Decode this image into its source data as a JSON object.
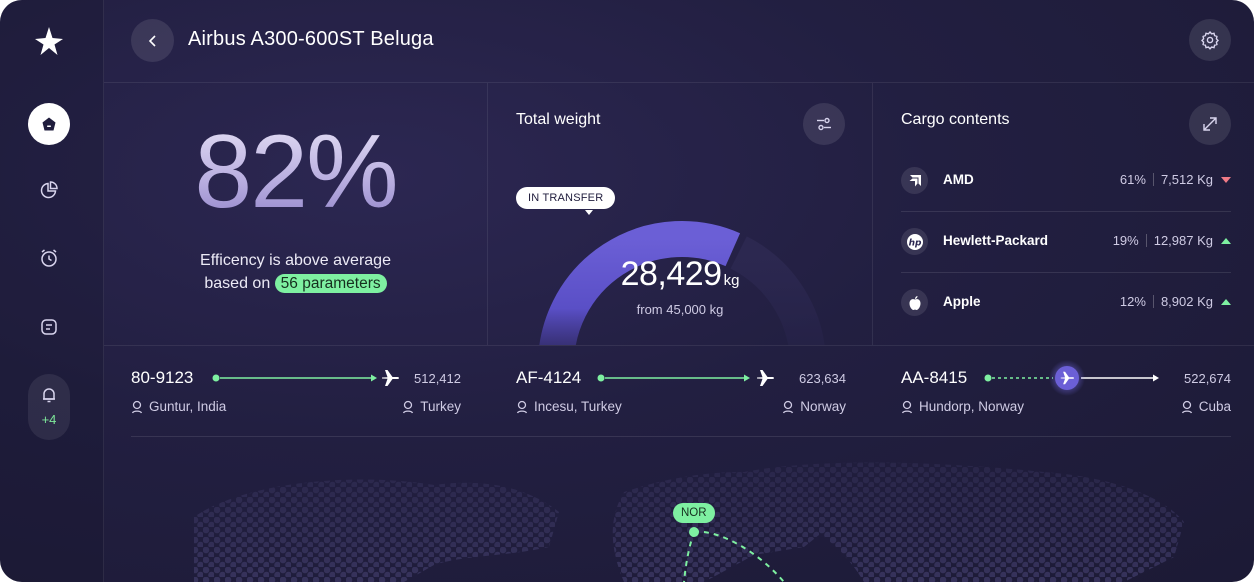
{
  "header": {
    "title": "Airbus A300-600ST Beluga"
  },
  "sidebar": {
    "notification_count": "+4"
  },
  "efficiency": {
    "percent": "82%",
    "line1": "Efficency is above average",
    "line2_prefix": "based on",
    "highlight": "56 parameters"
  },
  "weight": {
    "title": "Total weight",
    "status": "IN TRANSFER",
    "value": "28,429",
    "unit": "kg",
    "subtitle": "from 45,000 kg",
    "fraction": 0.632
  },
  "cargo": {
    "title": "Cargo contents",
    "items": [
      {
        "name": "AMD",
        "percent": "61%",
        "weight": "7,512 Kg",
        "trend": "down",
        "icon": "amd-logo-icon"
      },
      {
        "name": "Hewlett-Packard",
        "percent": "19%",
        "weight": "12,987 Kg",
        "trend": "up",
        "icon": "hp-logo-icon"
      },
      {
        "name": "Apple",
        "percent": "12%",
        "weight": "8,902 Kg",
        "trend": "up",
        "icon": "apple-logo-icon"
      }
    ]
  },
  "routes": [
    {
      "code": "80-9123",
      "count": "512,412",
      "from": "Guntur, India",
      "to": "Turkey",
      "progress": 1.0
    },
    {
      "code": "AF-4124",
      "count": "623,634",
      "from": "Incesu, Turkey",
      "to": "Norway",
      "progress": 1.0
    },
    {
      "code": "AA-8415",
      "count": "522,674",
      "from": "Hundorp, Norway",
      "to": "Cuba",
      "progress": 0.45
    }
  ],
  "map": {
    "marker_label": "NOR"
  },
  "colors": {
    "accent_green": "#7ef0a1",
    "accent_purple": "#6b5fd6",
    "trend_down": "#f07a86",
    "background": "#221f41"
  }
}
